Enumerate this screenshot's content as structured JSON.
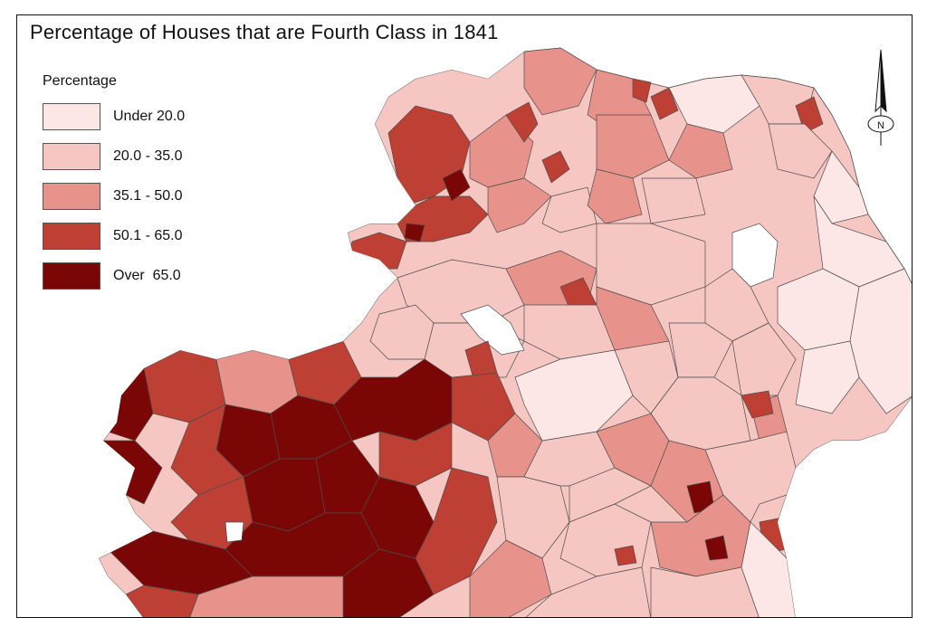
{
  "map": {
    "title": "Percentage of Houses that are Fourth Class in 1841"
  },
  "legend": {
    "title": "Percentage",
    "items": [
      {
        "label": "Under 20.0",
        "color": "#fde6e6"
      },
      {
        "label": "20.0 - 35.0",
        "color": "#f6c6c2"
      },
      {
        "label": "35.1 - 50.0",
        "color": "#e7938b"
      },
      {
        "label": "50.1 - 65.0",
        "color": "#be3f33"
      },
      {
        "label": "Over  65.0",
        "color": "#7a0606"
      }
    ]
  },
  "north_arrow": {
    "label": "N"
  },
  "colors": {
    "border": "#4d4d4d",
    "water": "#ffffff"
  }
}
